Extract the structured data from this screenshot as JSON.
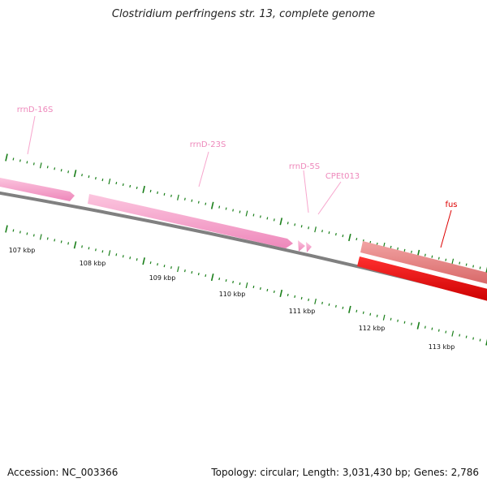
{
  "title": "Clostridium perfringens str. 13, complete genome",
  "footer": {
    "accession": "Accession: NC_003366",
    "summary": "Topology: circular; Length: 3,031,430 bp; Genes: 2,786"
  },
  "gene_labels": [
    "rrnD-16S",
    "rrnD-23S",
    "rrnD-5S",
    "CPEt013",
    "fus"
  ],
  "kbp_labels": [
    "107 kbp",
    "108 kbp",
    "109 kbp",
    "110 kbp",
    "111 kbp",
    "112 kbp",
    "113 kbp"
  ],
  "colors": {
    "rrna": "#f7a6cd",
    "trna": "#f7a6cd",
    "cds_forward": "#e88080",
    "cds_reverse": "#ee0000",
    "backbone": "#808080",
    "ticks": "#1a7f1a",
    "fus_label": "#dd0000",
    "rna_label": "#ee88bb"
  }
}
